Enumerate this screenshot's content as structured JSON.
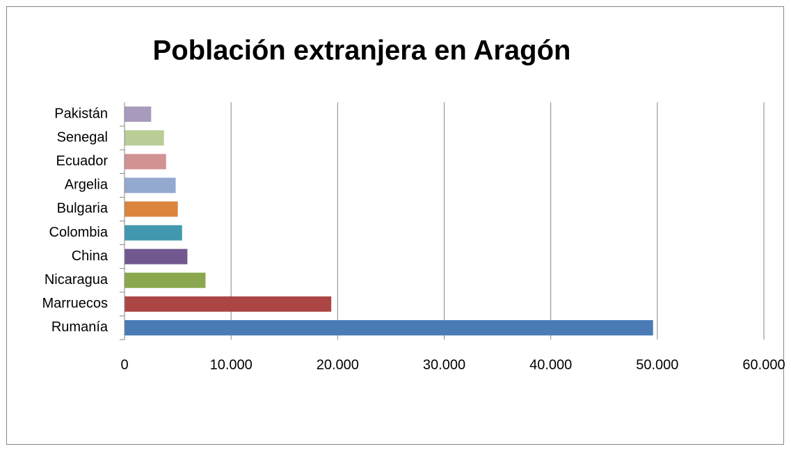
{
  "chart_data": {
    "type": "bar",
    "orientation": "horizontal",
    "title": "Población extranjera en Aragón",
    "categories": [
      "Rumanía",
      "Marruecos",
      "Nicaragua",
      "China",
      "Colombia",
      "Bulgaria",
      "Argelia",
      "Ecuador",
      "Senegal",
      "Pakistán"
    ],
    "values": [
      49600,
      19400,
      7600,
      5900,
      5400,
      5000,
      4800,
      3900,
      3700,
      2500
    ],
    "colors": [
      "#4a7bb5",
      "#ab4644",
      "#8ba84e",
      "#71588f",
      "#4198af",
      "#db843d",
      "#93a9cf",
      "#d19392",
      "#b9cd96",
      "#a99bbd"
    ],
    "xlim": [
      0,
      60000
    ],
    "xticks": [
      0,
      {
        "value": 10000,
        "label": "10.000"
      },
      {
        "value": 20000,
        "label": "20.000"
      },
      {
        "value": 30000,
        "label": "30.000"
      },
      {
        "value": 40000,
        "label": "40.000"
      },
      {
        "value": 50000,
        "label": "50.000"
      },
      {
        "value": 60000,
        "label": "60.000"
      }
    ],
    "grid": true
  }
}
